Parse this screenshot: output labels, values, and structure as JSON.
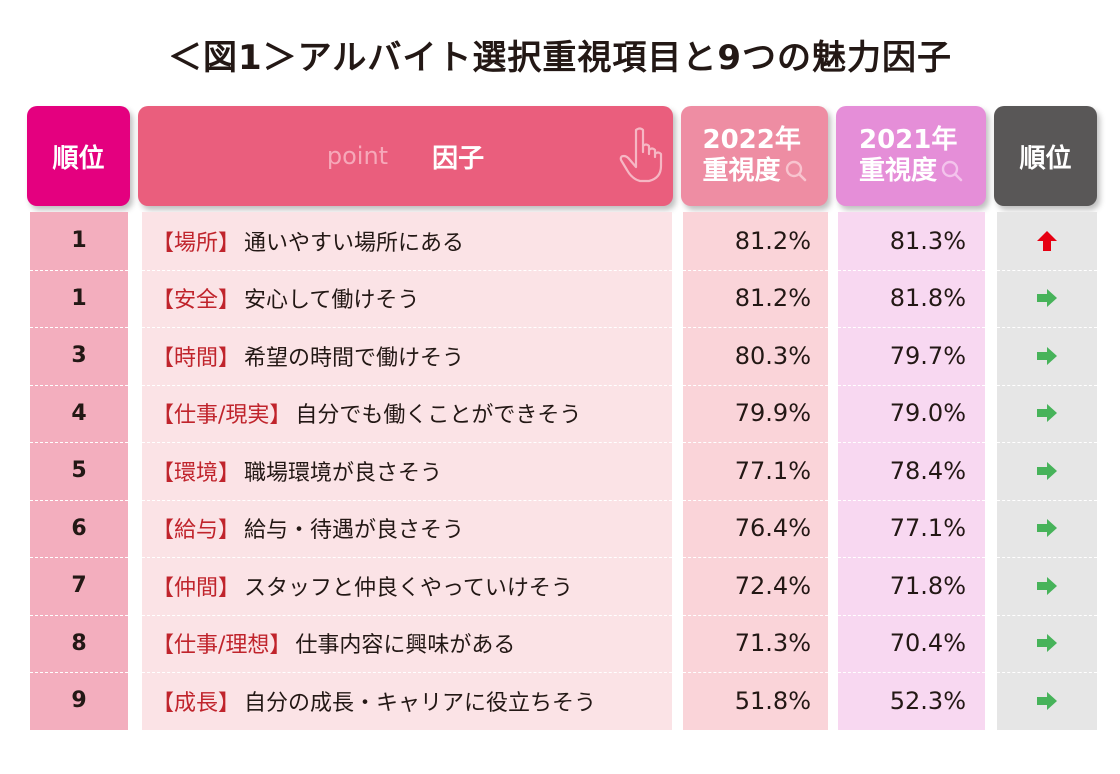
{
  "title": "＜図1＞アルバイト選択重視項目と9つの魅力因子",
  "header": {
    "rank": "順位",
    "factor_point": "point",
    "factor": "因子",
    "y2022_line1": "2022年",
    "y2022_line2": "重視度",
    "y2021_line1": "2021年",
    "y2021_line2": "重視度",
    "rank_change": "順位"
  },
  "colors": {
    "rank_header": "#e4007f",
    "factor_header": "#ea5e7d",
    "y2022_header": "#ee8da3",
    "y2021_header": "#e58ed8",
    "rank_change_header": "#595757",
    "up_arrow": "#e60012",
    "same_arrow": "#47b35a",
    "tag_text": "#c0242c"
  },
  "chart_data": {
    "type": "table",
    "title": "＜図1＞アルバイト選択重視項目と9つの魅力因子",
    "columns": [
      "順位",
      "因子",
      "2022年重視度",
      "2021年重視度",
      "順位"
    ],
    "rows": [
      {
        "rank": "1",
        "tag": "【場所】",
        "text": "通いやすい場所にある",
        "y2022": "81.2%",
        "y2021": "81.3%",
        "trend": "up"
      },
      {
        "rank": "1",
        "tag": "【安全】",
        "text": "安心して働けそう",
        "y2022": "81.2%",
        "y2021": "81.8%",
        "trend": "same"
      },
      {
        "rank": "3",
        "tag": "【時間】",
        "text": "希望の時間で働けそう",
        "y2022": "80.3%",
        "y2021": "79.7%",
        "trend": "same"
      },
      {
        "rank": "4",
        "tag": "【仕事/現実】",
        "text": "自分でも働くことができそう",
        "y2022": "79.9%",
        "y2021": "79.0%",
        "trend": "same"
      },
      {
        "rank": "5",
        "tag": "【環境】",
        "text": "職場環境が良さそう",
        "y2022": "77.1%",
        "y2021": "78.4%",
        "trend": "same"
      },
      {
        "rank": "6",
        "tag": "【給与】",
        "text": "給与・待遇が良さそう",
        "y2022": "76.4%",
        "y2021": "77.1%",
        "trend": "same"
      },
      {
        "rank": "7",
        "tag": "【仲間】",
        "text": "スタッフと仲良くやっていけそう",
        "y2022": "72.4%",
        "y2021": "71.8%",
        "trend": "same"
      },
      {
        "rank": "8",
        "tag": "【仕事/理想】",
        "text": "仕事内容に興味がある",
        "y2022": "71.3%",
        "y2021": "70.4%",
        "trend": "same"
      },
      {
        "rank": "9",
        "tag": "【成長】",
        "text": "自分の成長・キャリアに役立ちそう",
        "y2022": "51.8%",
        "y2021": "52.3%",
        "trend": "same"
      }
    ]
  }
}
